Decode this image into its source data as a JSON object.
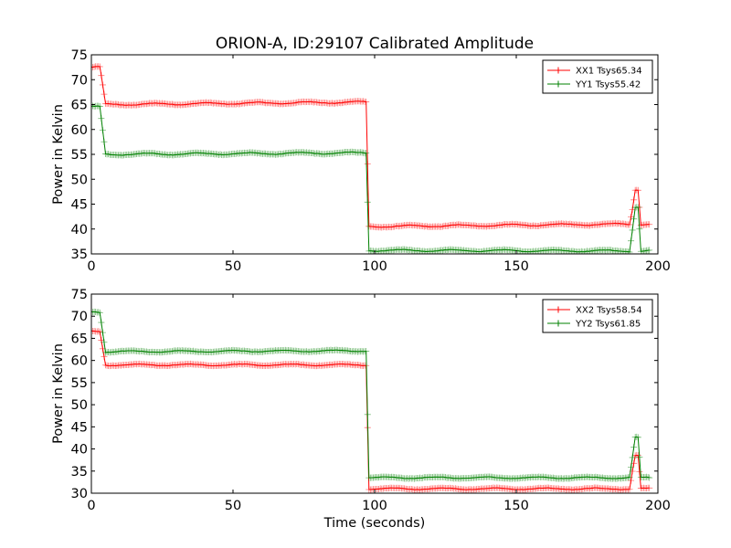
{
  "chart_data": {
    "title": "ORION-A, ID:29107 Calibrated Amplitude",
    "xlabel": "Time (seconds)",
    "colors": {
      "XX": "#ff0000",
      "YY": "#008000"
    },
    "panels": [
      {
        "type": "line",
        "ylabel": "Power in Kelvin",
        "xlabel": "",
        "xlim": [
          0,
          200
        ],
        "ylim": [
          35,
          75
        ],
        "xticks": [
          0,
          50,
          100,
          150,
          200
        ],
        "yticks": [
          35,
          40,
          45,
          50,
          55,
          60,
          65,
          70,
          75
        ],
        "legend_position": "top-right",
        "series": [
          {
            "name": "XX1 Tsys65.34",
            "color": "#ff0000",
            "segments": [
              [
                0,
                72.5
              ],
              [
                3,
                72.5
              ],
              [
                5,
                65.0
              ],
              [
                97,
                65.5
              ],
              [
                98,
                40.5
              ],
              [
                190,
                41.0
              ],
              [
                191,
                44.0
              ],
              [
                192,
                48.0
              ],
              [
                193,
                48.0
              ],
              [
                194,
                41.0
              ],
              [
                197,
                41.0
              ]
            ]
          },
          {
            "name": "YY1 Tsys55.42",
            "color": "#008000",
            "segments": [
              [
                0,
                64.5
              ],
              [
                3,
                64.5
              ],
              [
                5,
                55.0
              ],
              [
                97,
                55.3
              ],
              [
                98,
                35.7
              ],
              [
                190,
                35.6
              ],
              [
                191,
                40.0
              ],
              [
                192,
                44.5
              ],
              [
                193,
                44.5
              ],
              [
                194,
                35.6
              ],
              [
                197,
                35.6
              ]
            ]
          }
        ]
      },
      {
        "type": "line",
        "ylabel": "Power in Kelvin",
        "xlabel": "Time (seconds)",
        "xlim": [
          0,
          200
        ],
        "ylim": [
          30,
          75
        ],
        "xticks": [
          0,
          50,
          100,
          150,
          200
        ],
        "yticks": [
          30,
          35,
          40,
          45,
          50,
          55,
          60,
          65,
          70,
          75
        ],
        "legend_position": "top-right",
        "series": [
          {
            "name": "XX2 Tsys58.54",
            "color": "#ff0000",
            "segments": [
              [
                0,
                66.5
              ],
              [
                3,
                66.5
              ],
              [
                5,
                59.0
              ],
              [
                97,
                59.0
              ],
              [
                98,
                31.0
              ],
              [
                190,
                31.0
              ],
              [
                191,
                35.0
              ],
              [
                192,
                38.5
              ],
              [
                193,
                38.5
              ],
              [
                194,
                31.0
              ],
              [
                197,
                31.0
              ]
            ]
          },
          {
            "name": "YY2 Tsys61.85",
            "color": "#008000",
            "segments": [
              [
                0,
                71.0
              ],
              [
                3,
                71.0
              ],
              [
                5,
                62.0
              ],
              [
                97,
                62.2
              ],
              [
                98,
                33.5
              ],
              [
                190,
                33.5
              ],
              [
                191,
                38.0
              ],
              [
                192,
                42.5
              ],
              [
                193,
                42.5
              ],
              [
                194,
                33.5
              ],
              [
                197,
                33.5
              ]
            ]
          }
        ]
      }
    ]
  }
}
